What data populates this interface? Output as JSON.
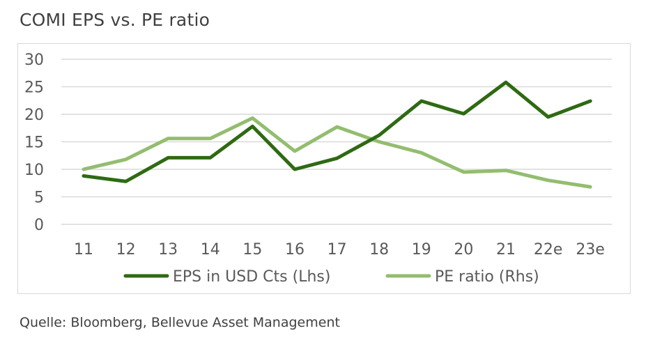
{
  "title": "COMI EPS vs. PE ratio",
  "source": "Quelle: Bloomberg, Bellevue Asset Management",
  "colors": {
    "eps": "#2e6a12",
    "pe": "#93bd6f",
    "grid": "#d9d9d9"
  },
  "chart_data": {
    "type": "line",
    "title": "COMI EPS vs. PE ratio",
    "categories": [
      "11",
      "12",
      "13",
      "14",
      "15",
      "16",
      "17",
      "18",
      "19",
      "20",
      "21",
      "22e",
      "23e"
    ],
    "yticks": [
      "30",
      "25",
      "20",
      "15",
      "10",
      "5",
      "0"
    ],
    "ylim": [
      0,
      30
    ],
    "grid": true,
    "legend_position": "bottom",
    "series": [
      {
        "name": "EPS in USD Cts (Lhs)",
        "values": [
          8.8,
          7.8,
          12.1,
          12.1,
          17.8,
          10.0,
          12.0,
          16.2,
          22.4,
          20.1,
          25.8,
          19.5,
          22.4
        ]
      },
      {
        "name": "PE ratio (Rhs)",
        "values": [
          10.0,
          11.8,
          15.6,
          15.6,
          19.3,
          13.3,
          17.7,
          15.0,
          13.0,
          9.5,
          9.8,
          8.0,
          6.8
        ]
      }
    ]
  }
}
